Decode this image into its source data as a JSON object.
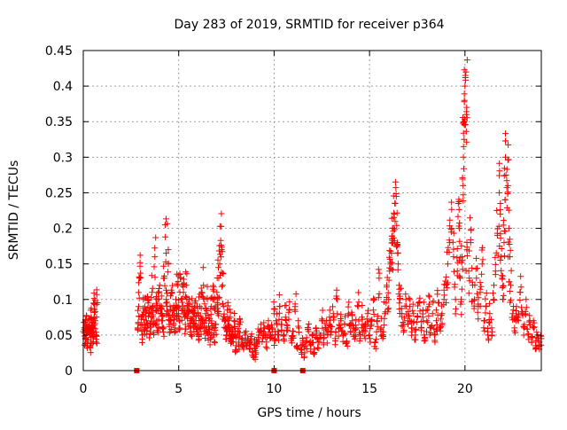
{
  "chart_data": {
    "type": "scatter",
    "title": "Day 283 of 2019, SRMTID for receiver p364",
    "xlabel": "GPS time / hours",
    "ylabel": "SRMTID / TECUs",
    "xlim": [
      0,
      24
    ],
    "ylim": [
      0,
      0.45
    ],
    "x_ticks": [
      0,
      5,
      10,
      15,
      20
    ],
    "x_tick_labels": [
      "0",
      "5",
      "10",
      "15",
      "20"
    ],
    "y_ticks": [
      0,
      0.05,
      0.1,
      0.15,
      0.2,
      0.25,
      0.3,
      0.35,
      0.4,
      0.45
    ],
    "y_tick_labels": [
      "0",
      "0.05",
      "0.1",
      "0.15",
      "0.2",
      "0.25",
      "0.3",
      "0.35",
      "0.4",
      "0.45"
    ],
    "grid": true,
    "marker": "plus",
    "color": "#ff0000",
    "zero_markers": [
      {
        "x": 2.8,
        "y": 0
      },
      {
        "x": 10.0,
        "y": 0
      },
      {
        "x": 11.5,
        "y": 0
      }
    ],
    "series": [
      {
        "name": "SRMTID",
        "points": [
          [
            0.0,
            0.055
          ],
          [
            0.05,
            0.06
          ],
          [
            0.1,
            0.045
          ],
          [
            0.12,
            0.07
          ],
          [
            0.15,
            0.05
          ],
          [
            0.2,
            0.065
          ],
          [
            0.22,
            0.04
          ],
          [
            0.25,
            0.058
          ],
          [
            0.3,
            0.062
          ],
          [
            0.35,
            0.05
          ],
          [
            0.38,
            0.035
          ],
          [
            0.4,
            0.06
          ],
          [
            0.42,
            0.075
          ],
          [
            0.45,
            0.055
          ],
          [
            0.5,
            0.048
          ],
          [
            0.52,
            0.068
          ],
          [
            0.55,
            0.06
          ],
          [
            0.58,
            0.085
          ],
          [
            0.6,
            0.093
          ],
          [
            0.62,
            0.07
          ],
          [
            0.65,
            0.05
          ],
          [
            0.68,
            0.04
          ],
          [
            0.7,
            0.093
          ],
          [
            2.85,
            0.06
          ],
          [
            2.9,
            0.09
          ],
          [
            2.95,
            0.13
          ],
          [
            3.0,
            0.137
          ],
          [
            3.05,
            0.075
          ],
          [
            3.1,
            0.05
          ],
          [
            3.15,
            0.1
          ],
          [
            3.2,
            0.065
          ],
          [
            3.25,
            0.085
          ],
          [
            3.3,
            0.07
          ],
          [
            3.35,
            0.06
          ],
          [
            3.4,
            0.095
          ],
          [
            3.45,
            0.08
          ],
          [
            3.5,
            0.055
          ],
          [
            3.55,
            0.075
          ],
          [
            3.6,
            0.11
          ],
          [
            3.65,
            0.09
          ],
          [
            3.7,
            0.065
          ],
          [
            3.75,
            0.16
          ],
          [
            3.8,
            0.085
          ],
          [
            3.85,
            0.07
          ],
          [
            3.9,
            0.1
          ],
          [
            3.95,
            0.06
          ],
          [
            4.0,
            0.12
          ],
          [
            4.05,
            0.08
          ],
          [
            4.1,
            0.09
          ],
          [
            4.15,
            0.07
          ],
          [
            4.2,
            0.06
          ],
          [
            4.25,
            0.13
          ],
          [
            4.3,
            0.188
          ],
          [
            4.35,
            0.1
          ],
          [
            4.4,
            0.08
          ],
          [
            4.45,
            0.17
          ],
          [
            4.5,
            0.065
          ],
          [
            4.55,
            0.09
          ],
          [
            4.6,
            0.07
          ],
          [
            4.65,
            0.11
          ],
          [
            4.7,
            0.085
          ],
          [
            4.75,
            0.075
          ],
          [
            4.8,
            0.06
          ],
          [
            4.85,
            0.1
          ],
          [
            4.9,
            0.08
          ],
          [
            4.95,
            0.12
          ],
          [
            5.0,
            0.09
          ],
          [
            5.05,
            0.07
          ],
          [
            5.1,
            0.13
          ],
          [
            5.15,
            0.1
          ],
          [
            5.2,
            0.085
          ],
          [
            5.25,
            0.11
          ],
          [
            5.3,
            0.075
          ],
          [
            5.35,
            0.065
          ],
          [
            5.4,
            0.12
          ],
          [
            5.45,
            0.09
          ],
          [
            5.5,
            0.08
          ],
          [
            5.55,
            0.1
          ],
          [
            5.6,
            0.07
          ],
          [
            5.65,
            0.06
          ],
          [
            5.7,
            0.085
          ],
          [
            5.75,
            0.075
          ],
          [
            5.8,
            0.055
          ],
          [
            5.85,
            0.095
          ],
          [
            5.9,
            0.07
          ],
          [
            5.95,
            0.06
          ],
          [
            6.0,
            0.08
          ],
          [
            6.05,
            0.05
          ],
          [
            6.1,
            0.09
          ],
          [
            6.15,
            0.065
          ],
          [
            6.2,
            0.11
          ],
          [
            6.25,
            0.07
          ],
          [
            6.3,
            0.12
          ],
          [
            6.35,
            0.055
          ],
          [
            6.4,
            0.08
          ],
          [
            6.45,
            0.06
          ],
          [
            6.5,
            0.1
          ],
          [
            6.55,
            0.05
          ],
          [
            6.6,
            0.07
          ],
          [
            6.65,
            0.045
          ],
          [
            6.7,
            0.09
          ],
          [
            6.75,
            0.06
          ],
          [
            6.8,
            0.1
          ],
          [
            6.85,
            0.05
          ],
          [
            6.9,
            0.085
          ],
          [
            6.95,
            0.065
          ],
          [
            7.0,
            0.11
          ],
          [
            7.05,
            0.08
          ],
          [
            7.1,
            0.13
          ],
          [
            7.15,
            0.15
          ],
          [
            7.2,
            0.183
          ],
          [
            7.25,
            0.17
          ],
          [
            7.3,
            0.12
          ],
          [
            7.35,
            0.09
          ],
          [
            7.4,
            0.07
          ],
          [
            7.45,
            0.06
          ],
          [
            7.5,
            0.05
          ],
          [
            7.55,
            0.085
          ],
          [
            7.6,
            0.065
          ],
          [
            7.65,
            0.055
          ],
          [
            7.7,
            0.075
          ],
          [
            7.75,
            0.045
          ],
          [
            7.8,
            0.06
          ],
          [
            7.85,
            0.04
          ],
          [
            7.9,
            0.07
          ],
          [
            7.95,
            0.05
          ],
          [
            8.0,
            0.035
          ],
          [
            8.1,
            0.055
          ],
          [
            8.15,
            0.04
          ],
          [
            8.2,
            0.065
          ],
          [
            8.3,
            0.045
          ],
          [
            8.4,
            0.03
          ],
          [
            8.5,
            0.05
          ],
          [
            8.6,
            0.04
          ],
          [
            8.7,
            0.03
          ],
          [
            8.8,
            0.045
          ],
          [
            8.9,
            0.02
          ],
          [
            9.0,
            0.035
          ],
          [
            9.05,
            0.025
          ],
          [
            9.1,
            0.04
          ],
          [
            9.2,
            0.05
          ],
          [
            9.3,
            0.065
          ],
          [
            9.4,
            0.045
          ],
          [
            9.5,
            0.06
          ],
          [
            9.6,
            0.04
          ],
          [
            9.7,
            0.07
          ],
          [
            9.8,
            0.05
          ],
          [
            9.9,
            0.06
          ],
          [
            10.0,
            0.08
          ],
          [
            10.05,
            0.045
          ],
          [
            10.1,
            0.07
          ],
          [
            10.2,
            0.055
          ],
          [
            10.3,
            0.09
          ],
          [
            10.4,
            0.065
          ],
          [
            10.5,
            0.05
          ],
          [
            10.6,
            0.075
          ],
          [
            10.7,
            0.06
          ],
          [
            10.8,
            0.085
          ],
          [
            10.9,
            0.045
          ],
          [
            11.0,
            0.055
          ],
          [
            11.1,
            0.09
          ],
          [
            11.2,
            0.035
          ],
          [
            11.3,
            0.06
          ],
          [
            11.4,
            0.03
          ],
          [
            11.5,
            0.045
          ],
          [
            11.6,
            0.025
          ],
          [
            11.7,
            0.04
          ],
          [
            11.8,
            0.055
          ],
          [
            11.9,
            0.035
          ],
          [
            12.0,
            0.05
          ],
          [
            12.1,
            0.03
          ],
          [
            12.2,
            0.06
          ],
          [
            12.3,
            0.04
          ],
          [
            12.4,
            0.05
          ],
          [
            12.5,
            0.07
          ],
          [
            12.6,
            0.045
          ],
          [
            12.7,
            0.06
          ],
          [
            12.8,
            0.05
          ],
          [
            12.9,
            0.075
          ],
          [
            13.0,
            0.055
          ],
          [
            13.1,
            0.08
          ],
          [
            13.2,
            0.045
          ],
          [
            13.3,
            0.1
          ],
          [
            13.4,
            0.06
          ],
          [
            13.5,
            0.07
          ],
          [
            13.6,
            0.05
          ],
          [
            13.7,
            0.065
          ],
          [
            13.8,
            0.04
          ],
          [
            13.9,
            0.08
          ],
          [
            14.0,
            0.055
          ],
          [
            14.1,
            0.07
          ],
          [
            14.2,
            0.05
          ],
          [
            14.3,
            0.06
          ],
          [
            14.4,
            0.09
          ],
          [
            14.5,
            0.045
          ],
          [
            14.6,
            0.075
          ],
          [
            14.7,
            0.06
          ],
          [
            14.8,
            0.055
          ],
          [
            14.9,
            0.08
          ],
          [
            15.0,
            0.05
          ],
          [
            15.1,
            0.065
          ],
          [
            15.2,
            0.085
          ],
          [
            15.3,
            0.04
          ],
          [
            15.4,
            0.07
          ],
          [
            15.5,
            0.13
          ],
          [
            15.6,
            0.06
          ],
          [
            15.7,
            0.05
          ],
          [
            15.8,
            0.08
          ],
          [
            15.9,
            0.12
          ],
          [
            16.0,
            0.1
          ],
          [
            16.05,
            0.14
          ],
          [
            16.1,
            0.15
          ],
          [
            16.15,
            0.165
          ],
          [
            16.2,
            0.18
          ],
          [
            16.25,
            0.2
          ],
          [
            16.3,
            0.22
          ],
          [
            16.35,
            0.235
          ],
          [
            16.4,
            0.245
          ],
          [
            16.45,
            0.18
          ],
          [
            16.5,
            0.15
          ],
          [
            16.55,
            0.12
          ],
          [
            16.6,
            0.1
          ],
          [
            16.7,
            0.08
          ],
          [
            16.8,
            0.065
          ],
          [
            16.9,
            0.1
          ],
          [
            17.0,
            0.07
          ],
          [
            17.1,
            0.09
          ],
          [
            17.2,
            0.06
          ],
          [
            17.3,
            0.08
          ],
          [
            17.4,
            0.05
          ],
          [
            17.5,
            0.075
          ],
          [
            17.6,
            0.095
          ],
          [
            17.7,
            0.06
          ],
          [
            17.8,
            0.085
          ],
          [
            17.9,
            0.045
          ],
          [
            18.0,
            0.07
          ],
          [
            18.1,
            0.09
          ],
          [
            18.2,
            0.06
          ],
          [
            18.3,
            0.08
          ],
          [
            18.4,
            0.05
          ],
          [
            18.5,
            0.07
          ],
          [
            18.6,
            0.095
          ],
          [
            18.7,
            0.06
          ],
          [
            18.8,
            0.08
          ],
          [
            18.9,
            0.1
          ],
          [
            19.0,
            0.12
          ],
          [
            19.1,
            0.15
          ],
          [
            19.2,
            0.18
          ],
          [
            19.3,
            0.2
          ],
          [
            19.4,
            0.16
          ],
          [
            19.5,
            0.1
          ],
          [
            19.6,
            0.14
          ],
          [
            19.65,
            0.235
          ],
          [
            19.7,
            0.2
          ],
          [
            19.75,
            0.13
          ],
          [
            19.8,
            0.1
          ],
          [
            19.85,
            0.16
          ],
          [
            19.9,
            0.26
          ],
          [
            19.92,
            0.3
          ],
          [
            19.95,
            0.325
          ],
          [
            19.97,
            0.38
          ],
          [
            20.0,
            0.4
          ],
          [
            20.02,
            0.415
          ],
          [
            20.05,
            0.42
          ],
          [
            20.08,
            0.36
          ],
          [
            20.1,
            0.17
          ],
          [
            20.2,
            0.14
          ],
          [
            20.3,
            0.18
          ],
          [
            20.4,
            0.12
          ],
          [
            20.5,
            0.1
          ],
          [
            20.6,
            0.13
          ],
          [
            20.7,
            0.09
          ],
          [
            20.8,
            0.11
          ],
          [
            20.9,
            0.15
          ],
          [
            21.0,
            0.07
          ],
          [
            21.1,
            0.09
          ],
          [
            21.2,
            0.05
          ],
          [
            21.3,
            0.08
          ],
          [
            21.4,
            0.06
          ],
          [
            21.5,
            0.1
          ],
          [
            21.6,
            0.14
          ],
          [
            21.7,
            0.19
          ],
          [
            21.8,
            0.25
          ],
          [
            21.85,
            0.22
          ],
          [
            21.9,
            0.16
          ],
          [
            21.95,
            0.13
          ],
          [
            22.0,
            0.1
          ],
          [
            22.05,
            0.18
          ],
          [
            22.1,
            0.24
          ],
          [
            22.15,
            0.275
          ],
          [
            22.2,
            0.283
          ],
          [
            22.25,
            0.26
          ],
          [
            22.3,
            0.2
          ],
          [
            22.35,
            0.16
          ],
          [
            22.4,
            0.12
          ],
          [
            22.5,
            0.08
          ],
          [
            22.6,
            0.06
          ],
          [
            22.7,
            0.09
          ],
          [
            22.8,
            0.07
          ],
          [
            22.9,
            0.11
          ],
          [
            23.0,
            0.08
          ],
          [
            23.1,
            0.06
          ],
          [
            23.2,
            0.1
          ],
          [
            23.3,
            0.05
          ],
          [
            23.4,
            0.07
          ],
          [
            23.5,
            0.04
          ],
          [
            23.6,
            0.06
          ],
          [
            23.7,
            0.035
          ],
          [
            23.8,
            0.05
          ],
          [
            23.9,
            0.03
          ],
          [
            24.0,
            0.045
          ]
        ]
      }
    ]
  }
}
